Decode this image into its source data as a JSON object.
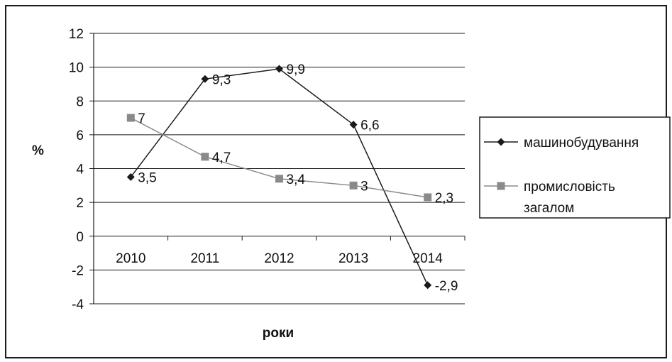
{
  "chart_data": {
    "type": "line",
    "title": "",
    "xlabel": "роки",
    "ylabel": "%",
    "categories": [
      "2010",
      "2011",
      "2012",
      "2013",
      "2014"
    ],
    "ylim": [
      -4,
      12
    ],
    "yticks": [
      -4,
      -2,
      0,
      2,
      4,
      6,
      8,
      10,
      12
    ],
    "grid": true,
    "legend_position": "right",
    "series": [
      {
        "name": "машинобудування",
        "values": [
          3.5,
          9.3,
          9.9,
          6.6,
          -2.9
        ],
        "labels": [
          "3,5",
          "9,3",
          "9,9",
          "6,6",
          "-2,9"
        ],
        "marker": "diamond",
        "color": "#1a1a1a"
      },
      {
        "name": "промисловість загалом",
        "name_lines": [
          "промисловість",
          "загалом"
        ],
        "values": [
          7,
          4.7,
          3.4,
          3,
          2.3
        ],
        "labels": [
          "7",
          "4,7",
          "3,4",
          "3",
          "2,3"
        ],
        "marker": "square",
        "color": "#8a8a8a"
      }
    ]
  }
}
